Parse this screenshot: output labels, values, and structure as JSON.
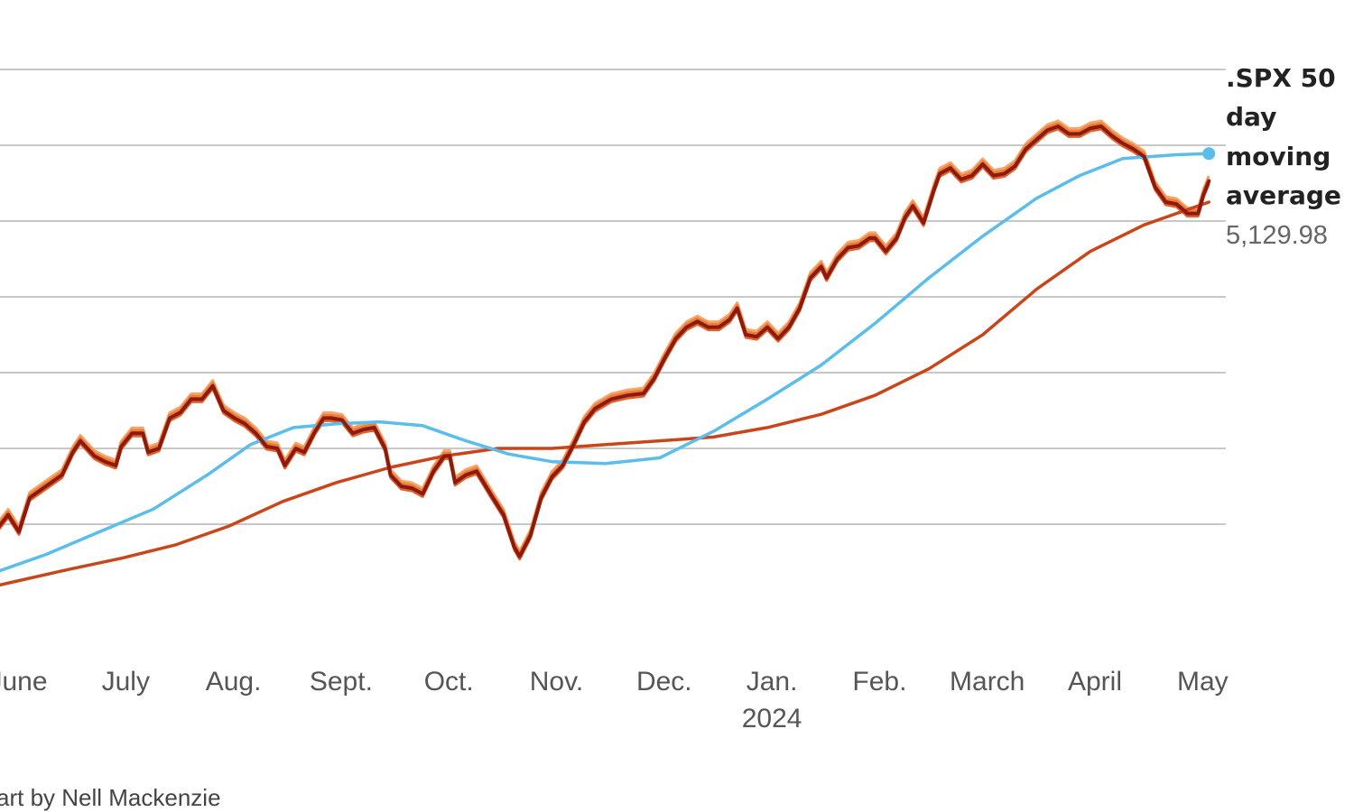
{
  "chart_data": {
    "type": "line",
    "x_axis": {
      "ticks": [
        "June",
        "July",
        "Aug.",
        "Sept.",
        "Oct.",
        "Nov.",
        "Dec.",
        "Jan.",
        "Feb.",
        "March",
        "April",
        "May"
      ],
      "year_label": "2024"
    },
    "grid": true,
    "ylim": [
      4000,
      5500
    ],
    "gridlines_y": [
      4200,
      4400,
      4600,
      4800,
      5000,
      5200,
      5400
    ],
    "months_x": [
      0,
      1,
      2,
      3,
      4,
      5,
      6,
      7,
      8,
      9,
      10,
      11
    ],
    "series": [
      {
        "color": "#8b1a10",
        "shape": "daily",
        "points": [
          [
            -0.2,
            4170
          ],
          [
            -0.05,
            4225
          ],
          [
            0.05,
            4180
          ],
          [
            0.15,
            4270
          ],
          [
            0.3,
            4300
          ],
          [
            0.45,
            4330
          ],
          [
            0.55,
            4390
          ],
          [
            0.62,
            4420
          ],
          [
            0.75,
            4380
          ],
          [
            0.85,
            4365
          ],
          [
            0.95,
            4355
          ],
          [
            1.0,
            4405
          ],
          [
            1.1,
            4440
          ],
          [
            1.2,
            4440
          ],
          [
            1.25,
            4390
          ],
          [
            1.35,
            4400
          ],
          [
            1.45,
            4480
          ],
          [
            1.55,
            4495
          ],
          [
            1.65,
            4530
          ],
          [
            1.75,
            4530
          ],
          [
            1.85,
            4565
          ],
          [
            1.95,
            4500
          ],
          [
            2.05,
            4480
          ],
          [
            2.15,
            4465
          ],
          [
            2.25,
            4440
          ],
          [
            2.35,
            4405
          ],
          [
            2.45,
            4400
          ],
          [
            2.52,
            4355
          ],
          [
            2.62,
            4400
          ],
          [
            2.7,
            4390
          ],
          [
            2.8,
            4445
          ],
          [
            2.88,
            4480
          ],
          [
            2.95,
            4480
          ],
          [
            3.05,
            4475
          ],
          [
            3.15,
            4440
          ],
          [
            3.25,
            4450
          ],
          [
            3.35,
            4455
          ],
          [
            3.45,
            4400
          ],
          [
            3.5,
            4330
          ],
          [
            3.6,
            4300
          ],
          [
            3.7,
            4295
          ],
          [
            3.8,
            4280
          ],
          [
            3.9,
            4340
          ],
          [
            4.0,
            4380
          ],
          [
            4.05,
            4380
          ],
          [
            4.1,
            4310
          ],
          [
            4.2,
            4330
          ],
          [
            4.3,
            4340
          ],
          [
            4.45,
            4270
          ],
          [
            4.55,
            4225
          ],
          [
            4.65,
            4140
          ],
          [
            4.7,
            4115
          ],
          [
            4.8,
            4170
          ],
          [
            4.9,
            4270
          ],
          [
            5.0,
            4325
          ],
          [
            5.1,
            4355
          ],
          [
            5.2,
            4410
          ],
          [
            5.3,
            4470
          ],
          [
            5.4,
            4505
          ],
          [
            5.55,
            4530
          ],
          [
            5.7,
            4540
          ],
          [
            5.85,
            4545
          ],
          [
            5.95,
            4585
          ],
          [
            6.05,
            4640
          ],
          [
            6.15,
            4690
          ],
          [
            6.25,
            4720
          ],
          [
            6.35,
            4735
          ],
          [
            6.45,
            4720
          ],
          [
            6.55,
            4720
          ],
          [
            6.65,
            4740
          ],
          [
            6.72,
            4770
          ],
          [
            6.8,
            4700
          ],
          [
            6.9,
            4695
          ],
          [
            7.0,
            4720
          ],
          [
            7.1,
            4690
          ],
          [
            7.2,
            4720
          ],
          [
            7.3,
            4770
          ],
          [
            7.4,
            4850
          ],
          [
            7.5,
            4880
          ],
          [
            7.55,
            4850
          ],
          [
            7.65,
            4900
          ],
          [
            7.75,
            4930
          ],
          [
            7.85,
            4935
          ],
          [
            7.95,
            4955
          ],
          [
            8.0,
            4955
          ],
          [
            8.1,
            4920
          ],
          [
            8.2,
            4955
          ],
          [
            8.28,
            5010
          ],
          [
            8.35,
            5040
          ],
          [
            8.45,
            4995
          ],
          [
            8.55,
            5085
          ],
          [
            8.6,
            5125
          ],
          [
            8.7,
            5140
          ],
          [
            8.8,
            5110
          ],
          [
            8.9,
            5120
          ],
          [
            9.0,
            5150
          ],
          [
            9.1,
            5120
          ],
          [
            9.2,
            5125
          ],
          [
            9.3,
            5145
          ],
          [
            9.4,
            5190
          ],
          [
            9.5,
            5215
          ],
          [
            9.6,
            5240
          ],
          [
            9.7,
            5250
          ],
          [
            9.8,
            5230
          ],
          [
            9.9,
            5230
          ],
          [
            10.0,
            5245
          ],
          [
            10.1,
            5250
          ],
          [
            10.2,
            5225
          ],
          [
            10.3,
            5205
          ],
          [
            10.4,
            5190
          ],
          [
            10.5,
            5170
          ],
          [
            10.6,
            5090
          ],
          [
            10.7,
            5050
          ],
          [
            10.8,
            5045
          ],
          [
            10.9,
            5020
          ],
          [
            11.0,
            5020
          ],
          [
            11.05,
            5070
          ],
          [
            11.1,
            5105
          ]
        ]
      },
      {
        "color": "#c9461b",
        "shape": "200-day average",
        "points": [
          [
            -0.2,
            4035
          ],
          [
            0.5,
            4080
          ],
          [
            1.0,
            4110
          ],
          [
            1.5,
            4145
          ],
          [
            2.0,
            4195
          ],
          [
            2.5,
            4260
          ],
          [
            3.0,
            4310
          ],
          [
            3.5,
            4350
          ],
          [
            4.0,
            4380
          ],
          [
            4.5,
            4400
          ],
          [
            5.0,
            4400
          ],
          [
            5.5,
            4410
          ],
          [
            6.0,
            4420
          ],
          [
            6.5,
            4430
          ],
          [
            7.0,
            4455
          ],
          [
            7.5,
            4490
          ],
          [
            8.0,
            4540
          ],
          [
            8.5,
            4610
          ],
          [
            9.0,
            4700
          ],
          [
            9.5,
            4820
          ],
          [
            10.0,
            4920
          ],
          [
            10.5,
            4990
          ],
          [
            11.1,
            5050
          ]
        ]
      },
      {
        "color": "#5bbdea",
        "shape": "50-day average",
        "points": [
          [
            -0.2,
            4070
          ],
          [
            0.3,
            4120
          ],
          [
            0.8,
            4180
          ],
          [
            1.3,
            4240
          ],
          [
            1.8,
            4330
          ],
          [
            2.2,
            4410
          ],
          [
            2.6,
            4455
          ],
          [
            3.0,
            4465
          ],
          [
            3.4,
            4470
          ],
          [
            3.8,
            4460
          ],
          [
            4.2,
            4420
          ],
          [
            4.6,
            4385
          ],
          [
            5.0,
            4365
          ],
          [
            5.5,
            4360
          ],
          [
            6.0,
            4375
          ],
          [
            6.5,
            4445
          ],
          [
            7.0,
            4530
          ],
          [
            7.5,
            4620
          ],
          [
            8.0,
            4730
          ],
          [
            8.5,
            4850
          ],
          [
            9.0,
            4960
          ],
          [
            9.5,
            5060
          ],
          [
            9.9,
            5120
          ],
          [
            10.3,
            5165
          ],
          [
            10.8,
            5175
          ],
          [
            11.1,
            5178
          ]
        ]
      }
    ],
    "annotation": {
      "title_lines": [
        ".SPX 50",
        "day",
        "moving",
        "average"
      ],
      "value": "5,129.98"
    },
    "credit": "art by Nell Mackenzie"
  }
}
